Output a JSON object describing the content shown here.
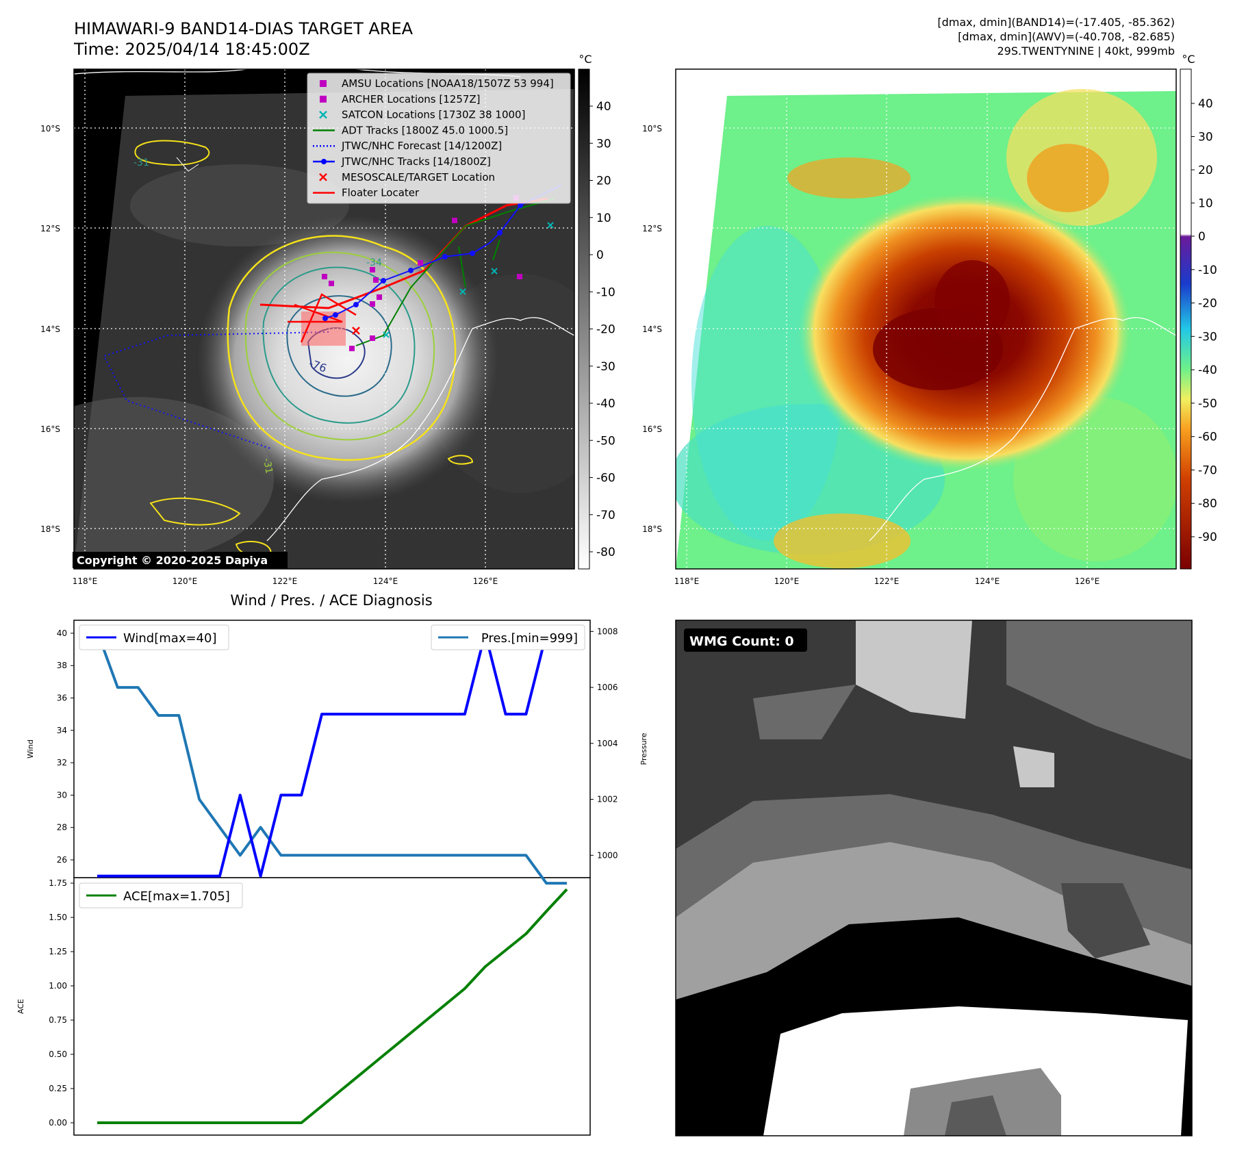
{
  "header": {
    "title_line1": "HIMAWARI-9 BAND14-DIAS TARGET AREA",
    "title_line2": "Time: 2025/04/14 18:45:00Z",
    "info_line1": "[dmax, dmin](BAND14)=(-17.405, -85.362)",
    "info_line2": "[dmax, dmin](AWV)=(-40.708, -82.685)",
    "info_line3": "29S.TWENTYNINE | 40kt, 999mb"
  },
  "map_ir": {
    "lon_ticks": [
      "118°E",
      "120°E",
      "122°E",
      "124°E",
      "126°E"
    ],
    "lat_ticks": [
      "10°S",
      "12°S",
      "14°S",
      "16°S",
      "18°S"
    ],
    "copyright": "Copyright © 2020-2025 Dapiya",
    "contour_labels": [
      "-76",
      "-31",
      "-34",
      "-31"
    ],
    "legend": [
      {
        "label": "AMSU Locations [NOAA18/1507Z 53 994]",
        "marker": "square",
        "color": "#c000c0"
      },
      {
        "label": "ARCHER Locations [1257Z]",
        "marker": "square",
        "color": "#c000c0"
      },
      {
        "label": "SATCON Locations [1730Z 38 1000]",
        "marker": "x",
        "color": "#00b4b4"
      },
      {
        "label": "ADT Tracks [1800Z 45.0 1000.5]",
        "marker": "line",
        "color": "#008000"
      },
      {
        "label": "JTWC/NHC Forecast [14/1200Z]",
        "marker": "dotted",
        "color": "#0000ff"
      },
      {
        "label": "JTWC/NHC Tracks [14/1800Z]",
        "marker": "line-dot",
        "color": "#0000ff"
      },
      {
        "label": "MESOSCALE/TARGET Location",
        "marker": "x",
        "color": "#ff0000"
      },
      {
        "label": "Floater Locater",
        "marker": "line",
        "color": "#ff0000"
      }
    ],
    "colorbar": {
      "unit": "°C",
      "ticks": [
        40,
        30,
        20,
        10,
        0,
        -10,
        -20,
        -30,
        -40,
        -50,
        -60,
        -70,
        -80
      ]
    }
  },
  "map_awv": {
    "lon_ticks": [
      "118°E",
      "120°E",
      "122°E",
      "124°E",
      "126°E"
    ],
    "lat_ticks": [
      "10°S",
      "12°S",
      "14°S",
      "16°S",
      "18°S"
    ],
    "colorbar": {
      "unit": "°C",
      "ticks": [
        40,
        30,
        20,
        10,
        0,
        -10,
        -20,
        -30,
        -40,
        -50,
        -60,
        -70,
        -80,
        -90
      ]
    }
  },
  "wmg": {
    "label": "WMG Count: 0"
  },
  "chart_data": [
    {
      "type": "line",
      "title": "Wind / Pres. / ACE Diagnosis",
      "ylabel": "Wind",
      "y2label": "Pressure",
      "ylim": [
        24.9,
        40.8
      ],
      "y2lim": [
        999.2,
        1008.4
      ],
      "yticks": [
        26,
        28,
        30,
        32,
        34,
        36,
        38,
        40
      ],
      "y2ticks": [
        1000,
        1002,
        1004,
        1006,
        1008
      ],
      "x": [
        0,
        1,
        2,
        3,
        4,
        5,
        6,
        7,
        8,
        9,
        10,
        11,
        12,
        13,
        14,
        15,
        16,
        17,
        18,
        19,
        20,
        21,
        22,
        23
      ],
      "series": [
        {
          "name": "Wind[max=40]",
          "axis": "left",
          "color": "#0000ff",
          "values": [
            25,
            25,
            25,
            25,
            25,
            25,
            25,
            30,
            25,
            30,
            30,
            35,
            35,
            35,
            35,
            35,
            35,
            35,
            35,
            40,
            35,
            35,
            40,
            40
          ]
        },
        {
          "name": "Pres.[min=999]",
          "axis": "right",
          "color": "#1f77b4",
          "values": [
            1008,
            1006,
            1006,
            1005,
            1005,
            1002,
            1001,
            1000,
            1001,
            1000,
            1000,
            1000,
            1000,
            1000,
            1000,
            1000,
            1000,
            1000,
            1000,
            1000,
            1000,
            1000,
            999,
            999
          ]
        }
      ]
    },
    {
      "type": "line",
      "ylabel": "ACE",
      "ylim": [
        -0.09,
        1.79
      ],
      "yticks": [
        0.0,
        0.25,
        0.5,
        0.75,
        1.0,
        1.25,
        1.5,
        1.75
      ],
      "x": [
        0,
        1,
        2,
        3,
        4,
        5,
        6,
        7,
        8,
        9,
        10,
        11,
        12,
        13,
        14,
        15,
        16,
        17,
        18,
        19,
        20,
        21,
        22,
        23
      ],
      "series": [
        {
          "name": "ACE[max=1.705]",
          "color": "#008000",
          "values": [
            0,
            0,
            0,
            0,
            0,
            0,
            0,
            0,
            0,
            0,
            0,
            0.122,
            0.245,
            0.367,
            0.49,
            0.612,
            0.735,
            0.857,
            0.98,
            1.14,
            1.26,
            1.38,
            1.545,
            1.705
          ]
        }
      ]
    }
  ]
}
